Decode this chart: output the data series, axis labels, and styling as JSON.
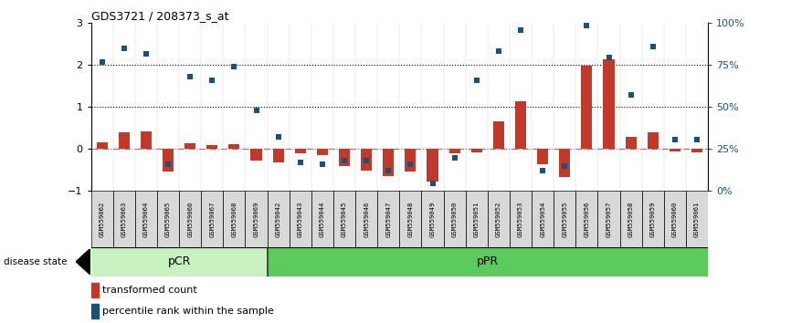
{
  "title": "GDS3721 / 208373_s_at",
  "samples": [
    "GSM559062",
    "GSM559063",
    "GSM559064",
    "GSM559065",
    "GSM559066",
    "GSM559067",
    "GSM559068",
    "GSM559069",
    "GSM559042",
    "GSM559043",
    "GSM559044",
    "GSM559045",
    "GSM559046",
    "GSM559047",
    "GSM559048",
    "GSM559049",
    "GSM559050",
    "GSM559051",
    "GSM559052",
    "GSM559053",
    "GSM559054",
    "GSM559055",
    "GSM559056",
    "GSM559057",
    "GSM559058",
    "GSM559059",
    "GSM559060",
    "GSM559061"
  ],
  "transformed_count": [
    0.15,
    0.38,
    0.42,
    -0.55,
    0.12,
    0.08,
    0.1,
    -0.28,
    -0.32,
    -0.12,
    -0.15,
    -0.42,
    -0.52,
    -0.65,
    -0.55,
    -0.78,
    -0.12,
    -0.08,
    0.65,
    1.12,
    -0.38,
    -0.68,
    1.98,
    2.12,
    0.28,
    0.38,
    -0.06,
    -0.1
  ],
  "percentile_rank_scaled": [
    2.05,
    2.38,
    2.25,
    -0.38,
    1.72,
    1.62,
    1.95,
    0.92,
    0.28,
    -0.32,
    -0.38,
    -0.28,
    -0.28,
    -0.52,
    -0.38,
    -0.82,
    -0.22,
    1.62,
    2.32,
    2.82,
    -0.52,
    -0.42,
    2.92,
    2.18,
    1.28,
    2.42,
    0.22,
    0.22
  ],
  "pCR_count": 8,
  "pPR_count": 20,
  "bar_color": "#c0392b",
  "dot_color": "#1a5276",
  "pCR_color": "#c8f0c0",
  "pPR_color": "#5dca5d",
  "ylim": [
    -1,
    3
  ],
  "dotted_lines": [
    1,
    2
  ],
  "background": "#ffffff"
}
